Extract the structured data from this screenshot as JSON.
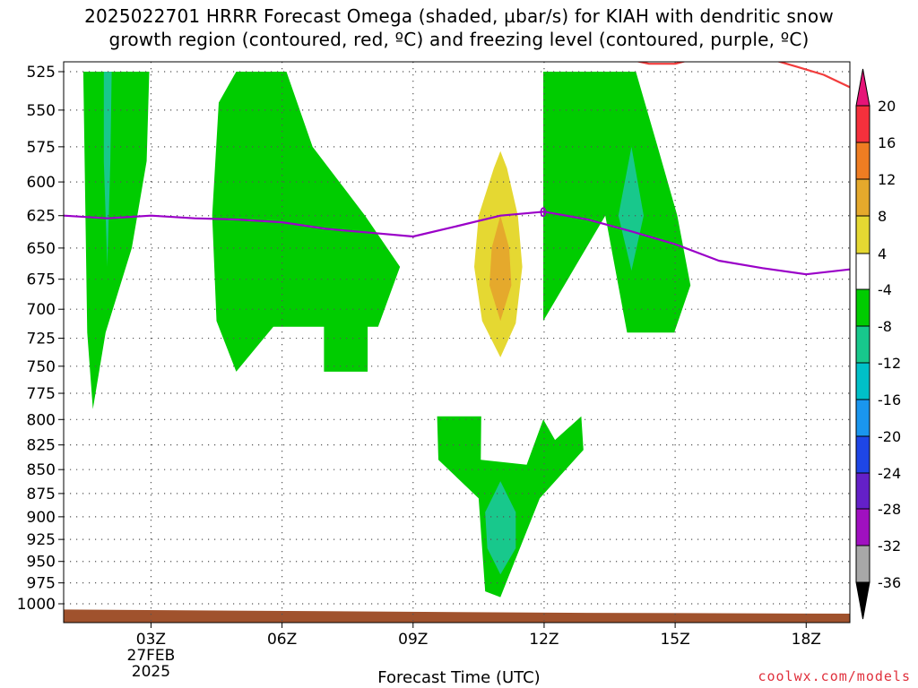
{
  "title_line1": "2025022701 HRRR Forecast Omega (shaded, µbar/s) for KIAH with dendritic snow",
  "title_line2": "growth region (contoured, red, ºC) and freezing level (contoured, purple, ºC)",
  "credit": "coolwx.com/models",
  "chart_data": {
    "type": "heatmap",
    "title": "2025022701 HRRR Forecast Omega (shaded, µbar/s) for KIAH with dendritic snow growth region (contoured, red, ºC) and freezing level (contoured, purple, ºC)",
    "xlabel": "Forecast Time (UTC)",
    "ylabel": "",
    "x_units": "forecast hour since 2025-02-27 00Z",
    "xlim": [
      1,
      19
    ],
    "ylim": [
      1000,
      525
    ],
    "y_scale": "log",
    "grid": true,
    "x_ticks": [
      {
        "hour": 3,
        "label": "03Z",
        "date_line1": "27FEB",
        "date_line2": "2025"
      },
      {
        "hour": 6,
        "label": "06Z"
      },
      {
        "hour": 9,
        "label": "09Z"
      },
      {
        "hour": 12,
        "label": "12Z"
      },
      {
        "hour": 15,
        "label": "15Z"
      },
      {
        "hour": 18,
        "label": "18Z"
      }
    ],
    "y_ticks": [
      525,
      550,
      575,
      600,
      625,
      650,
      675,
      700,
      725,
      750,
      775,
      800,
      825,
      850,
      875,
      900,
      925,
      950,
      975,
      1000
    ],
    "colorbar": {
      "labels": [
        "20",
        "16",
        "12",
        "8",
        "4",
        "-4",
        "-8",
        "-12",
        "-16",
        "-20",
        "-24",
        "-28",
        "-32",
        "-36"
      ],
      "bins": [
        {
          "min": 16,
          "max": 20,
          "color": "#f5303c"
        },
        {
          "min": 12,
          "max": 16,
          "color": "#ef7d22"
        },
        {
          "min": 8,
          "max": 12,
          "color": "#e5a92c"
        },
        {
          "min": 4,
          "max": 8,
          "color": "#e5d832"
        },
        {
          "min": -4,
          "max": 4,
          "color": "#ffffff"
        },
        {
          "min": -8,
          "max": -4,
          "color": "#00cc00"
        },
        {
          "min": -12,
          "max": -8,
          "color": "#18c88c"
        },
        {
          "min": -16,
          "max": -12,
          "color": "#00c0c8"
        },
        {
          "min": -20,
          "max": -16,
          "color": "#1a96ee"
        },
        {
          "min": -24,
          "max": -20,
          "color": "#1e46e6"
        },
        {
          "min": -28,
          "max": -24,
          "color": "#6420c8"
        },
        {
          "min": -32,
          "max": -28,
          "color": "#a010c0"
        },
        {
          "min": -36,
          "max": -32,
          "color": "#a8a8a8"
        }
      ],
      "over_color": "#e61478",
      "under_color": "#000000"
    },
    "shaded_regions": [
      {
        "bin": "-8 to -4",
        "color": "#00cc00",
        "polygon": [
          [
            1.45,
            525
          ],
          [
            1.54,
            720
          ],
          [
            1.67,
            790
          ],
          [
            1.96,
            720
          ],
          [
            2.56,
            650
          ],
          [
            2.9,
            585
          ],
          [
            2.96,
            525
          ]
        ]
      },
      {
        "bin": "-12 to -8",
        "color": "#18c88c",
        "polygon": [
          [
            1.92,
            525
          ],
          [
            1.92,
            585
          ],
          [
            2.0,
            665
          ],
          [
            2.07,
            585
          ],
          [
            2.1,
            525
          ]
        ]
      },
      {
        "bin": "-8 to -4",
        "color": "#00cc00",
        "polygon": [
          [
            4.4,
            625
          ],
          [
            4.5,
            710
          ],
          [
            4.95,
            755
          ],
          [
            5.8,
            715
          ],
          [
            6.96,
            715
          ],
          [
            6.96,
            755
          ],
          [
            7.96,
            755
          ],
          [
            7.96,
            715
          ],
          [
            8.2,
            715
          ],
          [
            8.7,
            665
          ],
          [
            7.9,
            625
          ],
          [
            6.7,
            575
          ],
          [
            6.1,
            525
          ],
          [
            4.95,
            525
          ],
          [
            4.55,
            545
          ]
        ]
      },
      {
        "bin": "4 to 8",
        "color": "#e5d832",
        "polygon": [
          [
            11.0,
            578
          ],
          [
            10.85,
            590
          ],
          [
            10.5,
            625
          ],
          [
            10.4,
            665
          ],
          [
            10.58,
            710
          ],
          [
            11.0,
            742
          ],
          [
            11.35,
            712
          ],
          [
            11.5,
            665
          ],
          [
            11.4,
            625
          ],
          [
            11.15,
            590
          ]
        ]
      },
      {
        "bin": "8 to 12",
        "color": "#e5a92c",
        "polygon": [
          [
            11.0,
            625
          ],
          [
            10.8,
            650
          ],
          [
            10.75,
            680
          ],
          [
            11.0,
            710
          ],
          [
            11.25,
            680
          ],
          [
            11.2,
            650
          ]
        ]
      },
      {
        "bin": "-8 to -4",
        "color": "#00cc00",
        "polygon": [
          [
            11.98,
            525
          ],
          [
            11.98,
            710
          ],
          [
            13.4,
            625
          ],
          [
            13.9,
            720
          ],
          [
            14.98,
            720
          ],
          [
            15.35,
            680
          ],
          [
            15.05,
            625
          ],
          [
            14.6,
            575
          ],
          [
            14.1,
            525
          ]
        ]
      },
      {
        "bin": "-12 to -8",
        "color": "#18c88c",
        "polygon": [
          [
            14.0,
            575
          ],
          [
            13.7,
            625
          ],
          [
            14.0,
            668
          ],
          [
            14.28,
            625
          ]
        ]
      },
      {
        "bin": "-8 to -4",
        "color": "#00cc00",
        "polygon": [
          [
            9.55,
            797
          ],
          [
            9.58,
            840
          ],
          [
            10.5,
            880
          ],
          [
            10.65,
            985
          ],
          [
            11.0,
            992
          ],
          [
            11.9,
            880
          ],
          [
            12.9,
            830
          ],
          [
            12.85,
            797
          ],
          [
            12.25,
            820
          ],
          [
            11.98,
            800
          ],
          [
            11.6,
            845
          ],
          [
            10.55,
            840
          ],
          [
            10.56,
            797
          ]
        ]
      },
      {
        "bin": "-12 to -8",
        "color": "#18c88c",
        "polygon": [
          [
            11.0,
            862
          ],
          [
            10.65,
            895
          ],
          [
            10.7,
            935
          ],
          [
            11.0,
            965
          ],
          [
            11.35,
            935
          ],
          [
            11.35,
            895
          ]
        ]
      }
    ],
    "series": [
      {
        "name": "freezing level",
        "color": "#9a00c8",
        "x": [
          1,
          2,
          3,
          4,
          5,
          6,
          7,
          8,
          9,
          10,
          11,
          12,
          13,
          14,
          15,
          16,
          17,
          18,
          19
        ],
        "y": [
          625,
          627,
          625,
          627,
          628,
          630,
          635,
          638,
          641,
          633,
          625,
          622,
          628,
          637,
          647,
          660,
          666,
          671,
          667
        ]
      },
      {
        "name": "dendritic snow growth region",
        "color": "#f23c3c",
        "x": [
          13.4,
          14.4,
          15.0,
          15.7,
          16.8,
          17.8,
          18.4,
          19.0
        ],
        "y": [
          514,
          520,
          520,
          515,
          514,
          522,
          527,
          535
        ]
      }
    ],
    "ground": {
      "color": "#a0522d",
      "y_top": [
        1007,
        1009,
        1011,
        1012
      ]
    }
  }
}
